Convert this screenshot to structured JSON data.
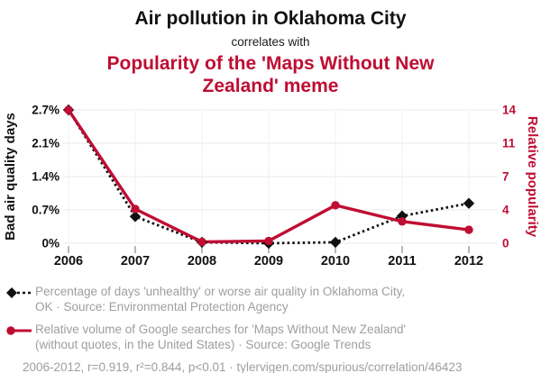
{
  "header": {
    "title": "Air pollution in Oklahoma City",
    "connector": "correlates with",
    "subtitle": "Popularity of the 'Maps Without New Zealand' meme"
  },
  "colors": {
    "accent_red": "#bf0d33",
    "series_black": "#111111",
    "grid": "#e9e9e9",
    "grid_vertical": "#f1f1f1",
    "tick_mark": "#999999",
    "legend_gray": "#9e9e9e"
  },
  "chart_data": {
    "type": "line",
    "title": "Air pollution in Oklahoma City correlates with Popularity of the 'Maps Without New Zealand' meme",
    "x": [
      2006,
      2007,
      2008,
      2009,
      2010,
      2011,
      2012
    ],
    "x_ticks": [
      "2006",
      "2007",
      "2008",
      "2009",
      "2010",
      "2011",
      "2012"
    ],
    "left_axis": {
      "label": "Bad air quality days",
      "ticks": [
        "2.7%",
        "2.1%",
        "1.4%",
        "0.7%",
        "0%"
      ],
      "min": 0,
      "max": 2.74
    },
    "right_axis": {
      "label": "Relative popularity",
      "ticks": [
        "14",
        "11",
        "7",
        "4",
        "0"
      ],
      "min": 0,
      "max": 14.4
    },
    "grid": true,
    "legend_position": "bottom",
    "series": [
      {
        "name": "Percentage of days 'unhealthy' or worse air quality in Oklahoma City, OK",
        "axis": "left",
        "color": "#111111",
        "style": "dotted",
        "marker": "diamond",
        "values": [
          2.74,
          0.55,
          0.02,
          0.0,
          0.02,
          0.56,
          0.82
        ]
      },
      {
        "name": "Relative volume of Google searches for 'Maps Without New Zealand'",
        "axis": "right",
        "color": "#bf0d33",
        "style": "solid",
        "marker": "circle",
        "values": [
          14.4,
          3.7,
          0.15,
          0.25,
          4.1,
          2.35,
          1.45
        ]
      }
    ]
  },
  "legend": [
    {
      "line1": "Percentage of days 'unhealthy' or worse air quality in Oklahoma City,",
      "line2": "OK · Source: Environmental Protection Agency"
    },
    {
      "line1": "Relative volume of Google searches for 'Maps Without New Zealand'",
      "line2": "(without quotes, in the United States) · Source: Google Trends"
    }
  ],
  "footer": {
    "text": "2006-2012, r=0.919, r²=0.844, p<0.01 · tylervigen.com/spurious/correlation/46423"
  }
}
